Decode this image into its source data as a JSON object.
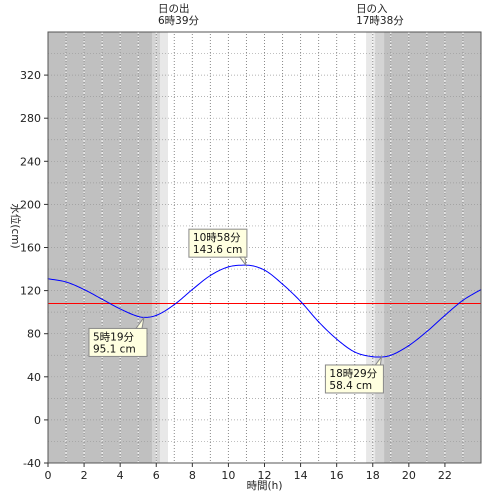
{
  "chart_data": {
    "type": "line",
    "title": "",
    "xlabel": "時間(h)",
    "ylabel": "水位(cm)",
    "xlim": [
      0,
      24
    ],
    "ylim": [
      -40,
      360
    ],
    "x_ticks": [
      0,
      2,
      4,
      6,
      8,
      10,
      12,
      14,
      16,
      18,
      20,
      22
    ],
    "y_ticks": [
      -40,
      0,
      40,
      80,
      120,
      160,
      200,
      240,
      280,
      320
    ],
    "x_tick_labels": [
      "0",
      "2",
      "4",
      "6",
      "8",
      "10",
      "12",
      "14",
      "16",
      "18",
      "20",
      "22"
    ],
    "y_tick_labels": [
      "-40",
      "0",
      "40",
      "80",
      "120",
      "160",
      "200",
      "240",
      "280",
      "320"
    ],
    "grid": true,
    "reference_line": {
      "y": 108,
      "color": "#ff0000"
    },
    "series": [
      {
        "color": "#0000ff",
        "x": [
          0,
          1,
          2,
          3,
          4,
          5,
          5.32,
          6,
          7,
          8,
          9,
          10,
          10.97,
          12,
          13,
          14,
          15,
          16,
          17,
          18,
          18.48,
          19,
          20,
          21,
          22,
          23,
          24
        ],
        "values": [
          131,
          128,
          121,
          112,
          103,
          96,
          95.1,
          97,
          107,
          121,
          134,
          142,
          143.6,
          139,
          126,
          110,
          91,
          75,
          63,
          58.6,
          58.4,
          60,
          69,
          82,
          97,
          111,
          121
        ]
      }
    ],
    "callouts": [
      {
        "x": 5.32,
        "y": 95.1,
        "time": "5時19分",
        "level": "95.1 cm",
        "placement": "below-right"
      },
      {
        "x": 10.97,
        "y": 143.6,
        "time": "10時58分",
        "level": "143.6 cm",
        "placement": "above-left"
      },
      {
        "x": 18.48,
        "y": 58.4,
        "time": "18時29分",
        "level": "58.4 cm",
        "placement": "below-left"
      }
    ],
    "night_color": "#c0c0c0",
    "sunrise": {
      "x": 6.65,
      "label": "日の出",
      "time": "6時39分"
    },
    "sunset": {
      "x": 17.63,
      "label": "日の入",
      "time": "17時38分"
    }
  }
}
